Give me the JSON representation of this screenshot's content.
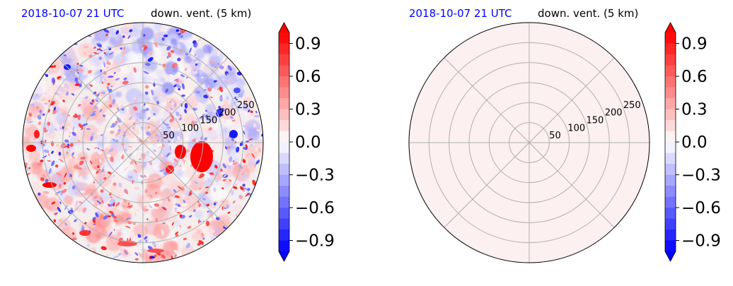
{
  "chart_data": [
    {
      "type": "heatmap",
      "projection": "polar",
      "title_left": "2018-10-07 21 UTC",
      "title_right": "down. vent. (5 km)",
      "title_left_color": "#0000ff",
      "radial_ticks": [
        "50",
        "100",
        "150",
        "200",
        "250"
      ],
      "radial_values": [
        50,
        100,
        150,
        200,
        250
      ],
      "rlim": [
        0,
        300
      ],
      "grid": true,
      "field": "mixed positive and negative cells (red/blue speckles)",
      "colorbar": {
        "ticks": [
          "0.9",
          "0.6",
          "0.3",
          "0.0",
          "−0.3",
          "−0.6",
          "−0.9"
        ],
        "values": [
          0.9,
          0.6,
          0.3,
          0.0,
          -0.3,
          -0.6,
          -0.9
        ],
        "vmin": -1.0,
        "vmax": 1.0,
        "extend": "both",
        "cmap": "bwr"
      }
    },
    {
      "type": "heatmap",
      "projection": "polar",
      "title_left": "2018-10-07 21 UTC",
      "title_right": "down. vent. (5 km)",
      "title_left_color": "#0000ff",
      "radial_ticks": [
        "50",
        "100",
        "150",
        "200",
        "250"
      ],
      "radial_values": [
        50,
        100,
        150,
        200,
        250
      ],
      "rlim": [
        0,
        300
      ],
      "grid": true,
      "field": "uniform near-zero positive value",
      "uniform_color": "#fdf0f0",
      "colorbar": {
        "ticks": [
          "0.9",
          "0.6",
          "0.3",
          "0.0",
          "−0.3",
          "−0.6",
          "−0.9"
        ],
        "values": [
          0.9,
          0.6,
          0.3,
          0.0,
          -0.3,
          -0.6,
          -0.9
        ],
        "vmin": -1.0,
        "vmax": 1.0,
        "extend": "both",
        "cmap": "bwr"
      }
    }
  ]
}
